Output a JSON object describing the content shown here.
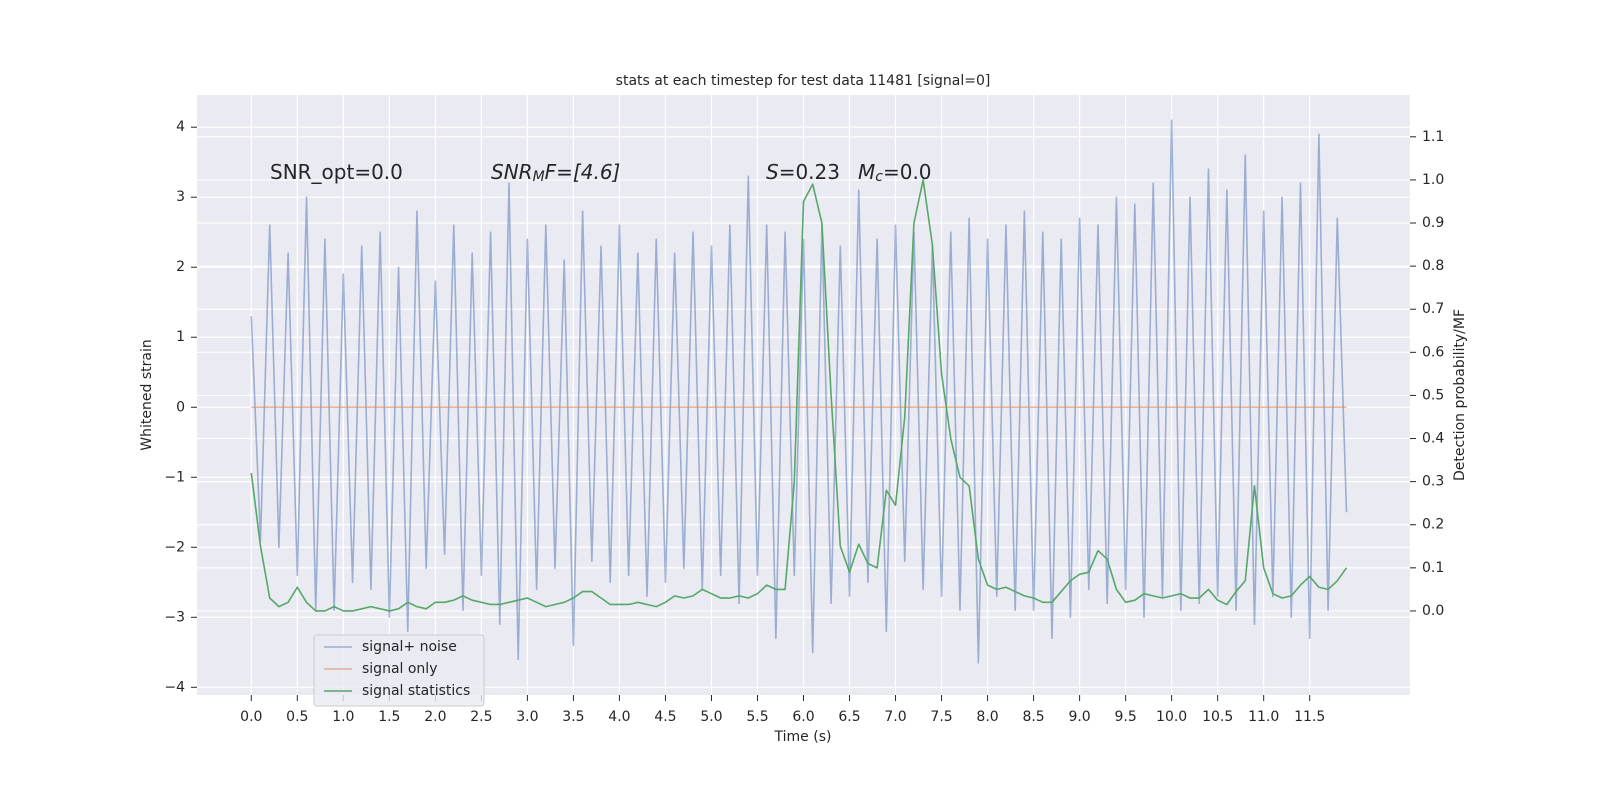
{
  "chart_data": {
    "type": "line",
    "title": "stats at each timestep for test data 11481 [signal=0]",
    "xlabel": "Time (s)",
    "ylabel": "Whitened strain",
    "y2label": "Detection probability/MF",
    "annotations": [
      [
        "SNR_opt=0.0"
      ],
      [
        "SNR",
        "M",
        "F=[4.6]"
      ],
      [
        "S",
        "=0.23"
      ],
      [
        "M",
        "c",
        "=0.0"
      ]
    ],
    "grid": true,
    "legend": "lower left",
    "xlim": [
      -0.59,
      12.59
    ],
    "ylim": [
      -4.11,
      4.46
    ],
    "y2lim": [
      -0.195,
      1.197
    ],
    "xticks": [
      {
        "value": 0,
        "label": "0.0"
      },
      {
        "value": 0.5,
        "label": "0.5"
      },
      {
        "value": 1,
        "label": "1.0"
      },
      {
        "value": 1.5,
        "label": "1.5"
      },
      {
        "value": 2,
        "label": "2.0"
      },
      {
        "value": 2.5,
        "label": "2.5"
      },
      {
        "value": 3,
        "label": "3.0"
      },
      {
        "value": 3.5,
        "label": "3.5"
      },
      {
        "value": 4,
        "label": "4.0"
      },
      {
        "value": 4.5,
        "label": "4.5"
      },
      {
        "value": 5,
        "label": "5.0"
      },
      {
        "value": 5.5,
        "label": "5.5"
      },
      {
        "value": 6,
        "label": "6.0"
      },
      {
        "value": 6.5,
        "label": "6.5"
      },
      {
        "value": 7,
        "label": "7.0"
      },
      {
        "value": 7.5,
        "label": "7.5"
      },
      {
        "value": 8,
        "label": "8.0"
      },
      {
        "value": 8.5,
        "label": "8.5"
      },
      {
        "value": 9,
        "label": "9.0"
      },
      {
        "value": 9.5,
        "label": "9.5"
      },
      {
        "value": 10,
        "label": "10.0"
      },
      {
        "value": 10.5,
        "label": "10.5"
      },
      {
        "value": 11,
        "label": "11.0"
      },
      {
        "value": 11.5,
        "label": "11.5"
      }
    ],
    "yticks": [
      {
        "value": -4,
        "label": "−4"
      },
      {
        "value": -3,
        "label": "−3"
      },
      {
        "value": -2,
        "label": "−2"
      },
      {
        "value": -1,
        "label": "−1"
      },
      0,
      1,
      2,
      3,
      4
    ],
    "y2ticks": [
      {
        "value": 0,
        "label": "0.0"
      },
      {
        "value": 0.1,
        "label": "0.1"
      },
      {
        "value": 0.2,
        "label": "0.2"
      },
      {
        "value": 0.3,
        "label": "0.3"
      },
      {
        "value": 0.4,
        "label": "0.4"
      },
      {
        "value": 0.5,
        "label": "0.5"
      },
      {
        "value": 0.6,
        "label": "0.6"
      },
      {
        "value": 0.7,
        "label": "0.7"
      },
      {
        "value": 0.8,
        "label": "0.8"
      },
      {
        "value": 0.9,
        "label": "0.9"
      },
      {
        "value": 1,
        "label": "1.0"
      },
      {
        "value": 1.1,
        "label": "1.1"
      }
    ],
    "x": [
      0,
      0.1,
      0.2,
      0.3,
      0.4,
      0.5,
      0.6,
      0.7,
      0.8,
      0.9,
      1,
      1.1,
      1.2,
      1.3,
      1.4,
      1.5,
      1.6,
      1.7,
      1.8,
      1.9,
      2,
      2.1,
      2.2,
      2.3,
      2.4,
      2.5,
      2.6,
      2.7,
      2.8,
      2.9,
      3,
      3.1,
      3.2,
      3.3,
      3.4,
      3.5,
      3.6,
      3.7,
      3.8,
      3.9,
      4,
      4.1,
      4.2,
      4.3,
      4.4,
      4.5,
      4.6,
      4.7,
      4.8,
      4.9,
      5,
      5.1,
      5.2,
      5.3,
      5.4,
      5.5,
      5.6,
      5.7,
      5.8,
      5.9,
      6,
      6.1,
      6.2,
      6.3,
      6.4,
      6.5,
      6.6,
      6.7,
      6.8,
      6.9,
      7,
      7.1,
      7.2,
      7.3,
      7.4,
      7.5,
      7.6,
      7.7,
      7.8,
      7.9,
      8,
      8.1,
      8.2,
      8.3,
      8.4,
      8.5,
      8.6,
      8.7,
      8.8,
      8.9,
      9,
      9.1,
      9.2,
      9.3,
      9.4,
      9.5,
      9.6,
      9.7,
      9.8,
      9.9,
      10,
      10.1,
      10.2,
      10.3,
      10.4,
      10.5,
      10.6,
      10.7,
      10.8,
      10.9,
      11,
      11.1,
      11.2,
      11.3,
      11.4,
      11.5,
      11.6,
      11.7,
      11.8,
      11.9
    ],
    "series": [
      {
        "name": "signal+ noise",
        "color": "#4c72b0",
        "values": [
          1.3,
          -1.9,
          2.6,
          -2.0,
          2.2,
          -2.4,
          3.0,
          -2.9,
          2.4,
          -2.9,
          1.9,
          -2.5,
          2.3,
          -2.6,
          2.5,
          -3.0,
          2.0,
          -3.2,
          2.8,
          -2.3,
          1.8,
          -2.1,
          2.6,
          -2.9,
          2.2,
          -2.4,
          2.5,
          -3.1,
          3.2,
          -3.6,
          2.4,
          -2.6,
          2.6,
          -2.3,
          2.1,
          -3.4,
          2.8,
          -2.2,
          2.3,
          -2.5,
          2.6,
          -2.4,
          2.2,
          -2.7,
          2.4,
          -2.5,
          2.2,
          -2.3,
          2.5,
          -2.6,
          2.3,
          -2.4,
          2.6,
          -2.8,
          3.3,
          -2.4,
          2.6,
          -3.3,
          2.5,
          -2.4,
          2.4,
          -3.5,
          2.6,
          -2.8,
          2.3,
          -2.7,
          3.1,
          -2.5,
          2.4,
          -3.2,
          2.6,
          -2.2,
          2.5,
          -2.6,
          2.3,
          -2.7,
          2.5,
          -2.9,
          2.7,
          -3.65,
          2.4,
          -2.7,
          2.6,
          -2.9,
          2.8,
          -2.9,
          2.5,
          -3.3,
          2.4,
          -3.0,
          2.7,
          -2.6,
          2.6,
          -2.8,
          3.0,
          -2.6,
          2.9,
          -3.0,
          3.2,
          -2.7,
          4.1,
          -2.9,
          3.0,
          -2.8,
          3.4,
          -2.7,
          3.1,
          -2.9,
          3.6,
          -3.1,
          2.8,
          -2.7,
          3.0,
          -3.0,
          3.2,
          -3.3,
          3.9,
          -2.9,
          2.7,
          -1.5
        ]
      },
      {
        "name": "signal only",
        "color": "#dd8452",
        "values": [
          0,
          0,
          0,
          0,
          0,
          0,
          0,
          0,
          0,
          0,
          0,
          0,
          0,
          0,
          0,
          0,
          0,
          0,
          0,
          0,
          0,
          0,
          0,
          0,
          0,
          0,
          0,
          0,
          0,
          0,
          0,
          0,
          0,
          0,
          0,
          0,
          0,
          0,
          0,
          0,
          0,
          0,
          0,
          0,
          0,
          0,
          0,
          0,
          0,
          0,
          0,
          0,
          0,
          0,
          0,
          0,
          0,
          0,
          0,
          0,
          0,
          0,
          0,
          0,
          0,
          0,
          0,
          0,
          0,
          0,
          0,
          0,
          0,
          0,
          0,
          0,
          0,
          0,
          0,
          0,
          0,
          0,
          0,
          0,
          0,
          0,
          0,
          0,
          0,
          0,
          0,
          0,
          0,
          0,
          0,
          0,
          0,
          0,
          0,
          0,
          0,
          0,
          0,
          0,
          0,
          0,
          0,
          0,
          0,
          0,
          0,
          0,
          0,
          0,
          0,
          0,
          0,
          0,
          0,
          0
        ]
      },
      {
        "name": "signal statistics",
        "color": "#55a868",
        "axis": "y2",
        "values": [
          0.32,
          0.15,
          0.03,
          0.01,
          0.02,
          0.055,
          0.02,
          0.0,
          0.0,
          0.01,
          0.0,
          0.0,
          0.005,
          0.01,
          0.005,
          0.0,
          0.005,
          0.02,
          0.01,
          0.005,
          0.02,
          0.02,
          0.025,
          0.035,
          0.025,
          0.02,
          0.015,
          0.015,
          0.02,
          0.025,
          0.03,
          0.02,
          0.01,
          0.015,
          0.02,
          0.03,
          0.045,
          0.045,
          0.03,
          0.015,
          0.015,
          0.015,
          0.02,
          0.015,
          0.01,
          0.02,
          0.035,
          0.03,
          0.035,
          0.05,
          0.04,
          0.03,
          0.03,
          0.035,
          0.03,
          0.04,
          0.06,
          0.05,
          0.05,
          0.3,
          0.95,
          0.99,
          0.9,
          0.5,
          0.15,
          0.09,
          0.155,
          0.11,
          0.1,
          0.28,
          0.245,
          0.45,
          0.9,
          1.0,
          0.85,
          0.55,
          0.4,
          0.31,
          0.29,
          0.12,
          0.06,
          0.05,
          0.055,
          0.045,
          0.035,
          0.03,
          0.02,
          0.02,
          0.045,
          0.07,
          0.085,
          0.09,
          0.14,
          0.12,
          0.05,
          0.02,
          0.025,
          0.04,
          0.035,
          0.03,
          0.035,
          0.04,
          0.03,
          0.03,
          0.05,
          0.025,
          0.015,
          0.045,
          0.07,
          0.29,
          0.1,
          0.04,
          0.03,
          0.035,
          0.06,
          0.08,
          0.055,
          0.05,
          0.07,
          0.1
        ]
      }
    ]
  }
}
